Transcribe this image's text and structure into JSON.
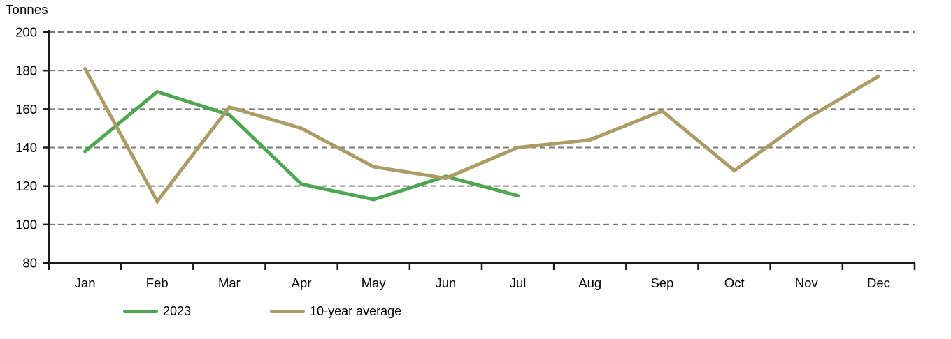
{
  "chart_data": {
    "type": "line",
    "title": "",
    "ylabel": "Tonnes",
    "xlabel": "",
    "categories": [
      "Jan",
      "Feb",
      "Mar",
      "Apr",
      "May",
      "Jun",
      "Jul",
      "Aug",
      "Sep",
      "Oct",
      "Nov",
      "Dec"
    ],
    "series": [
      {
        "name": "2023",
        "color": "#4EA653",
        "values": [
          138,
          169,
          157,
          121,
          113,
          125,
          115
        ]
      },
      {
        "name": "10-year average",
        "color": "#AB9B64",
        "values": [
          181,
          112,
          161,
          150,
          130,
          124,
          140,
          144,
          159,
          128,
          155,
          177
        ]
      }
    ],
    "ylim": [
      80,
      200
    ],
    "ytick_step": 20,
    "yticks": [
      "80",
      "100",
      "120",
      "140",
      "160",
      "180",
      "200"
    ],
    "grid": "horizontal-dashed",
    "grid_color": "#7A7A7A",
    "axis_color": "#1A1A1A",
    "legend_position": "bottom-left"
  }
}
